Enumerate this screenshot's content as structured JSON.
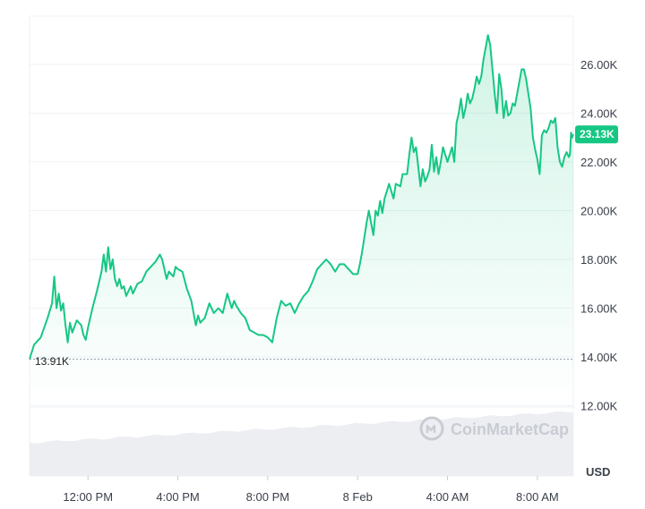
{
  "chart_data": {
    "type": "area",
    "x_ticks": [
      "12:00 PM",
      "4:00 PM",
      "8:00 PM",
      "8 Feb",
      "4:00 AM",
      "8:00 AM"
    ],
    "y_ticks": [
      "12.00K",
      "14.00K",
      "16.00K",
      "18.00K",
      "20.00K",
      "22.00K",
      "24.00K",
      "26.00K"
    ],
    "ylim": [
      11400,
      27700
    ],
    "xlim": [
      0,
      24.2
    ],
    "unit": "USD",
    "open_value": 13910,
    "open_label": "13.91K",
    "last_value": 23130,
    "last_label": "23.13K",
    "watermark": "CoinMarketCap",
    "grid": true,
    "colors": {
      "line": "#16c784",
      "label_bg": "#16c784",
      "grid": "#eff2f5",
      "volume": "#eceef2"
    },
    "volume_shown": true,
    "series": [
      {
        "values": [
          [
            0.0,
            13910
          ],
          [
            0.2,
            14500
          ],
          [
            0.5,
            14800
          ],
          [
            0.8,
            15600
          ],
          [
            1.0,
            16200
          ],
          [
            1.1,
            17300
          ],
          [
            1.2,
            16000
          ],
          [
            1.3,
            16600
          ],
          [
            1.4,
            15900
          ],
          [
            1.5,
            16200
          ],
          [
            1.6,
            15300
          ],
          [
            1.7,
            14600
          ],
          [
            1.8,
            15400
          ],
          [
            1.9,
            15000
          ],
          [
            2.1,
            15500
          ],
          [
            2.3,
            15300
          ],
          [
            2.4,
            14900
          ],
          [
            2.5,
            14700
          ],
          [
            2.6,
            15200
          ],
          [
            2.8,
            16000
          ],
          [
            3.0,
            16700
          ],
          [
            3.2,
            17500
          ],
          [
            3.3,
            18200
          ],
          [
            3.4,
            17500
          ],
          [
            3.5,
            18500
          ],
          [
            3.6,
            17600
          ],
          [
            3.7,
            18000
          ],
          [
            3.8,
            17200
          ],
          [
            3.9,
            16900
          ],
          [
            4.0,
            17200
          ],
          [
            4.1,
            16800
          ],
          [
            4.2,
            16900
          ],
          [
            4.3,
            16500
          ],
          [
            4.5,
            16900
          ],
          [
            4.6,
            16600
          ],
          [
            4.7,
            16800
          ],
          [
            4.8,
            17000
          ],
          [
            5.0,
            17100
          ],
          [
            5.2,
            17500
          ],
          [
            5.4,
            17700
          ],
          [
            5.6,
            17900
          ],
          [
            5.8,
            18200
          ],
          [
            5.9,
            18000
          ],
          [
            6.0,
            17600
          ],
          [
            6.1,
            17200
          ],
          [
            6.2,
            17500
          ],
          [
            6.4,
            17300
          ],
          [
            6.5,
            17700
          ],
          [
            6.6,
            17600
          ],
          [
            6.8,
            17500
          ],
          [
            7.0,
            16800
          ],
          [
            7.2,
            16300
          ],
          [
            7.4,
            15300
          ],
          [
            7.5,
            15700
          ],
          [
            7.6,
            15400
          ],
          [
            7.8,
            15600
          ],
          [
            8.0,
            16200
          ],
          [
            8.2,
            15800
          ],
          [
            8.4,
            16000
          ],
          [
            8.6,
            15800
          ],
          [
            8.8,
            16600
          ],
          [
            9.0,
            16000
          ],
          [
            9.1,
            16300
          ],
          [
            9.2,
            16100
          ],
          [
            9.4,
            15800
          ],
          [
            9.6,
            15600
          ],
          [
            9.8,
            15100
          ],
          [
            10.0,
            15000
          ],
          [
            10.2,
            14900
          ],
          [
            10.4,
            14900
          ],
          [
            10.6,
            14800
          ],
          [
            10.7,
            14700
          ],
          [
            10.8,
            14600
          ],
          [
            10.9,
            15100
          ],
          [
            11.0,
            15600
          ],
          [
            11.2,
            16300
          ],
          [
            11.4,
            16100
          ],
          [
            11.6,
            16200
          ],
          [
            11.8,
            15800
          ],
          [
            12.0,
            16200
          ],
          [
            12.2,
            16500
          ],
          [
            12.4,
            16700
          ],
          [
            12.6,
            17100
          ],
          [
            12.8,
            17600
          ],
          [
            13.0,
            17800
          ],
          [
            13.2,
            18000
          ],
          [
            13.4,
            17800
          ],
          [
            13.6,
            17500
          ],
          [
            13.8,
            17800
          ],
          [
            14.0,
            17800
          ],
          [
            14.2,
            17600
          ],
          [
            14.4,
            17400
          ],
          [
            14.6,
            17400
          ],
          [
            14.7,
            17800
          ],
          [
            14.8,
            18300
          ],
          [
            15.0,
            19500
          ],
          [
            15.1,
            20000
          ],
          [
            15.3,
            19000
          ],
          [
            15.4,
            20000
          ],
          [
            15.5,
            19800
          ],
          [
            15.6,
            20400
          ],
          [
            15.7,
            19900
          ],
          [
            15.8,
            20500
          ],
          [
            16.0,
            21100
          ],
          [
            16.2,
            20500
          ],
          [
            16.3,
            21100
          ],
          [
            16.5,
            21000
          ],
          [
            16.6,
            21500
          ],
          [
            16.8,
            21500
          ],
          [
            16.9,
            22300
          ],
          [
            17.0,
            23000
          ],
          [
            17.1,
            22400
          ],
          [
            17.2,
            22600
          ],
          [
            17.3,
            21800
          ],
          [
            17.4,
            21000
          ],
          [
            17.5,
            21700
          ],
          [
            17.6,
            21200
          ],
          [
            17.7,
            21400
          ],
          [
            17.8,
            21700
          ],
          [
            17.9,
            22700
          ],
          [
            18.0,
            21600
          ],
          [
            18.1,
            22200
          ],
          [
            18.2,
            21500
          ],
          [
            18.3,
            22000
          ],
          [
            18.4,
            22600
          ],
          [
            18.5,
            22300
          ],
          [
            18.6,
            22000
          ],
          [
            18.8,
            22600
          ],
          [
            18.9,
            22000
          ],
          [
            19.0,
            23600
          ],
          [
            19.1,
            24000
          ],
          [
            19.2,
            24600
          ],
          [
            19.3,
            23800
          ],
          [
            19.4,
            24200
          ],
          [
            19.5,
            24800
          ],
          [
            19.6,
            24400
          ],
          [
            19.7,
            24600
          ],
          [
            19.8,
            25000
          ],
          [
            19.9,
            25500
          ],
          [
            20.0,
            25200
          ],
          [
            20.1,
            25500
          ],
          [
            20.2,
            26200
          ],
          [
            20.3,
            26700
          ],
          [
            20.4,
            27200
          ],
          [
            20.5,
            26800
          ],
          [
            20.6,
            25800
          ],
          [
            20.7,
            24800
          ],
          [
            20.8,
            24000
          ],
          [
            20.9,
            25600
          ],
          [
            21.0,
            25000
          ],
          [
            21.1,
            23800
          ],
          [
            21.2,
            24500
          ],
          [
            21.3,
            23900
          ],
          [
            21.4,
            24000
          ],
          [
            21.5,
            24400
          ],
          [
            21.6,
            24300
          ],
          [
            21.7,
            24800
          ],
          [
            21.8,
            25300
          ],
          [
            21.9,
            25800
          ],
          [
            22.0,
            25800
          ],
          [
            22.1,
            25400
          ],
          [
            22.2,
            24800
          ],
          [
            22.3,
            24200
          ],
          [
            22.4,
            23000
          ],
          [
            22.5,
            22500
          ],
          [
            22.6,
            22100
          ],
          [
            22.7,
            21500
          ],
          [
            22.8,
            23100
          ],
          [
            22.9,
            23300
          ],
          [
            23.0,
            23200
          ],
          [
            23.1,
            23400
          ],
          [
            23.2,
            23700
          ],
          [
            23.3,
            23600
          ],
          [
            23.4,
            23800
          ],
          [
            23.5,
            22600
          ],
          [
            23.6,
            22000
          ],
          [
            23.7,
            21800
          ],
          [
            23.8,
            22200
          ],
          [
            23.9,
            22400
          ],
          [
            24.0,
            22200
          ],
          [
            24.05,
            22300
          ],
          [
            24.1,
            23200
          ],
          [
            24.15,
            23000
          ],
          [
            24.2,
            23130
          ]
        ]
      }
    ]
  }
}
